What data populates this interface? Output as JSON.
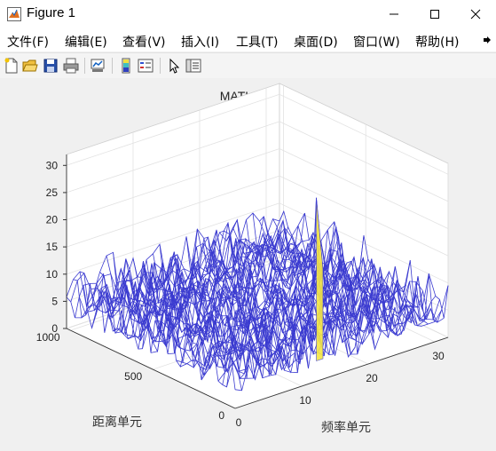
{
  "window": {
    "title": "Figure 1"
  },
  "menu": [
    "文件(F)",
    "编辑(E)",
    "查看(V)",
    "插入(I)",
    "工具(T)",
    "桌面(D)",
    "窗口(W)",
    "帮助(H)"
  ],
  "toolbar": {
    "buttons": [
      "new-figure-icon",
      "open-file-icon",
      "save-icon",
      "print-icon",
      "link-plot-icon",
      "colorbar-icon",
      "legend-icon",
      "edit-plot-icon",
      "property-inspector-icon"
    ]
  },
  "chart_data": {
    "type": "surface-mesh",
    "title": "MATLAB FFT",
    "xlabel": "频率单元",
    "ylabel": "距离单元",
    "zlabel": "",
    "x_ticks": [
      "0",
      "10",
      "20",
      "30"
    ],
    "y_ticks": [
      "0",
      "500",
      "1000"
    ],
    "z_ticks": [
      "0",
      "5",
      "10",
      "15",
      "20",
      "25",
      "30"
    ],
    "xlim": [
      0,
      32
    ],
    "ylim": [
      0,
      1024
    ],
    "zlim": [
      0,
      32
    ],
    "noise_floor_range": [
      0,
      12
    ],
    "peak": {
      "x": 16,
      "y": 150,
      "z": 30
    },
    "mesh_color": "#3b3bd0",
    "peak_color": "#f5e642"
  }
}
